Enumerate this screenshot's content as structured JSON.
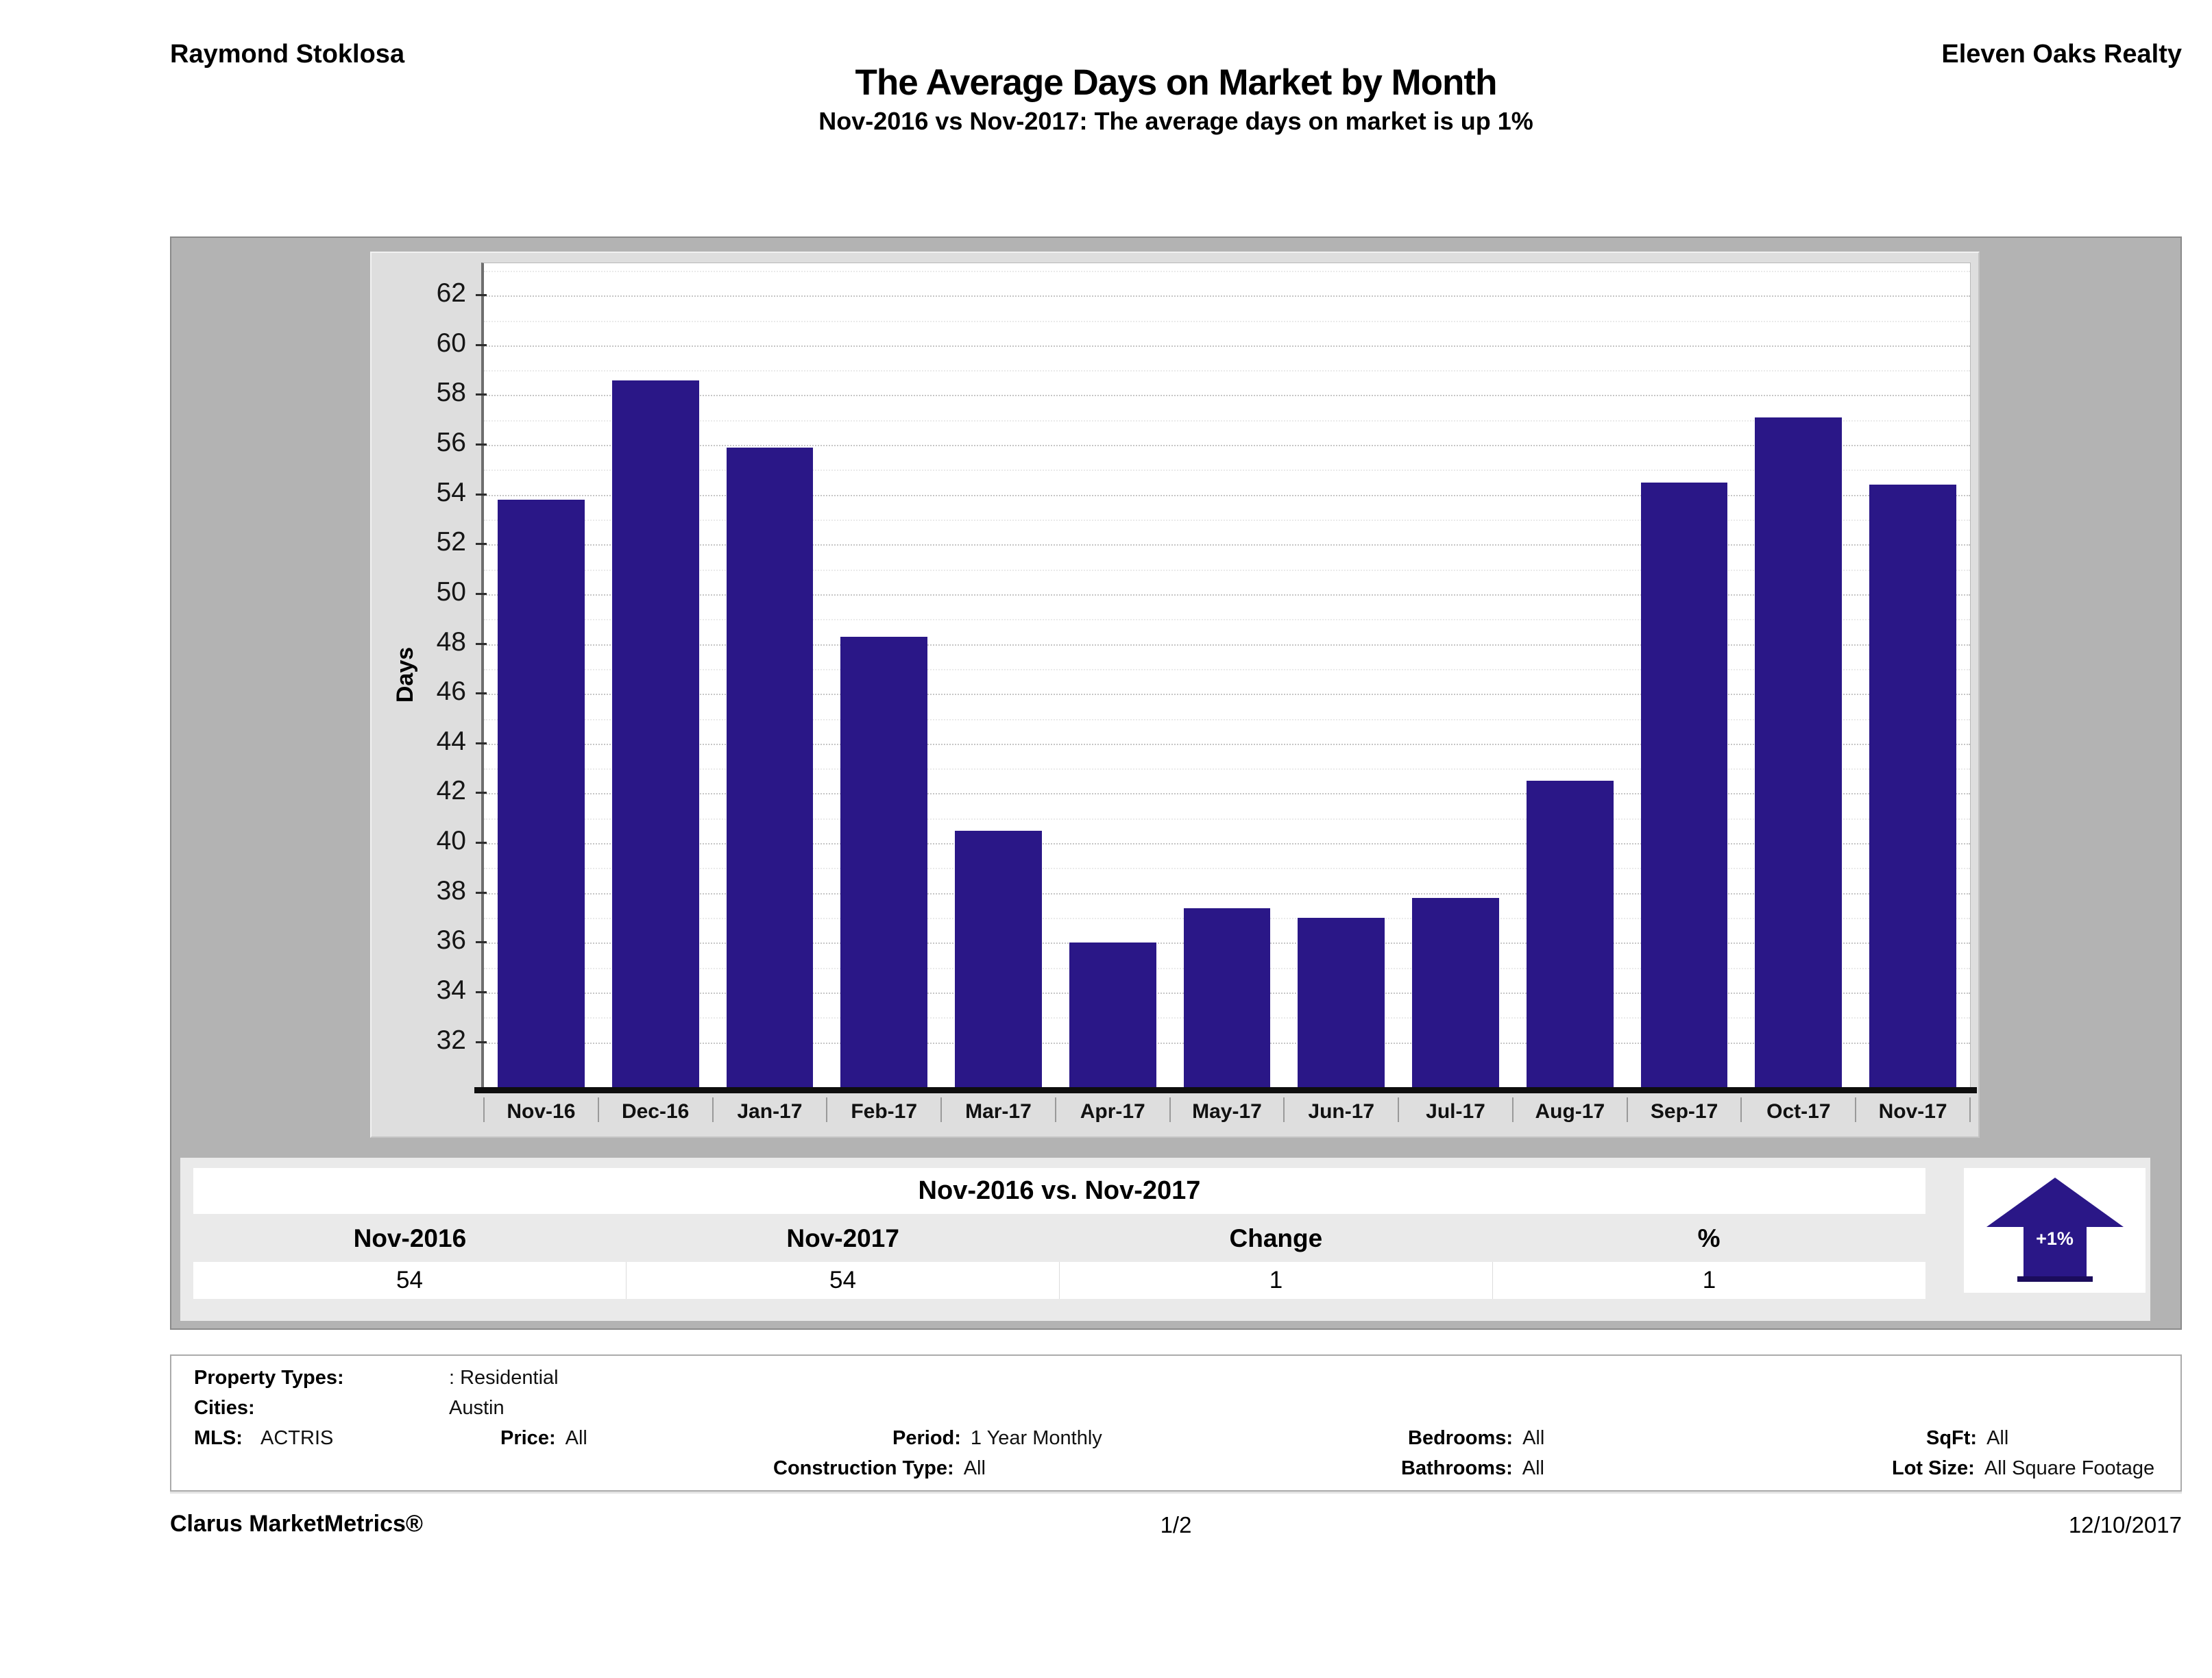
{
  "header": {
    "agent": "Raymond Stoklosa",
    "company": "Eleven Oaks Realty",
    "title": "The Average Days on Market by Month",
    "subtitle": "Nov-2016 vs Nov-2017: The average days on market is up 1%"
  },
  "chart_data": {
    "type": "bar",
    "title": "The Average Days on Market by Month",
    "xlabel": "",
    "ylabel": "Days",
    "categories": [
      "Nov-16",
      "Dec-16",
      "Jan-17",
      "Feb-17",
      "Mar-17",
      "Apr-17",
      "May-17",
      "Jun-17",
      "Jul-17",
      "Aug-17",
      "Sep-17",
      "Oct-17",
      "Nov-17"
    ],
    "values": [
      53.8,
      58.6,
      55.9,
      48.3,
      40.5,
      36.0,
      37.4,
      37.0,
      37.8,
      42.5,
      54.5,
      57.1,
      54.4
    ],
    "ylim": [
      30.2,
      63.3
    ],
    "yticks": [
      32,
      34,
      36,
      38,
      40,
      42,
      44,
      46,
      48,
      50,
      52,
      54,
      56,
      58,
      60,
      62
    ],
    "grid": true,
    "minor_gridlines": true,
    "legend_position": "none",
    "bar_color": "#2a1787",
    "plot_bg": "#ffffff",
    "panel_bg": "#dedede"
  },
  "summary": {
    "title": "Nov-2016 vs. Nov-2017",
    "columns": [
      "Nov-2016",
      "Nov-2017",
      "Change",
      "%"
    ],
    "values": [
      "54",
      "54",
      "1",
      "1"
    ],
    "badge_label": "+1%",
    "badge_color": "#2a1787",
    "badge_base_color": "#1b0c5c"
  },
  "filters": {
    "rows": [
      [
        {
          "label": "Property Types:",
          "value": ": Residential"
        }
      ],
      [
        {
          "label": "Cities:",
          "value": "Austin"
        }
      ],
      [
        {
          "label": "MLS:",
          "value": "ACTRIS"
        },
        {
          "label": "Price:",
          "value": "All"
        },
        {
          "label": "Period:",
          "value": "1 Year Monthly"
        },
        {
          "label": "Bedrooms:",
          "value": "All"
        },
        {
          "label": "SqFt:",
          "value": "All"
        }
      ],
      [
        {
          "label": "Construction Type:",
          "value": "All"
        },
        {
          "label": "Bathrooms:",
          "value": "All"
        },
        {
          "label": "Lot Size:",
          "value": "All Square Footage"
        }
      ]
    ]
  },
  "footer": {
    "brand": "Clarus MarketMetrics®",
    "page": "1/2",
    "date": "12/10/2017"
  }
}
